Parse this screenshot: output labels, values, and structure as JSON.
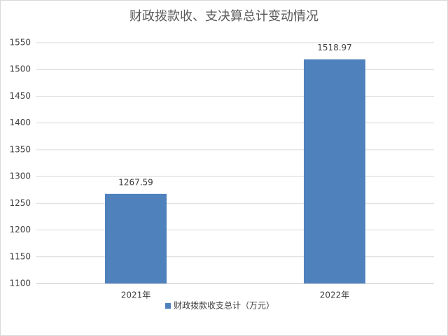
{
  "chart_data": {
    "type": "bar",
    "title": "财政拨款收、支决算总计变动情况",
    "categories": [
      "2021年",
      "2022年"
    ],
    "series": [
      {
        "name": "财政拨款收支总计（万元）",
        "color": "#4f81bd",
        "values": [
          1267.59,
          1518.97
        ]
      }
    ],
    "ylim": [
      1100,
      1550
    ],
    "yticks": [
      1100,
      1150,
      1200,
      1250,
      1300,
      1350,
      1400,
      1450,
      1500,
      1550
    ],
    "grid": true,
    "legend": "bottom",
    "data_labels": true
  }
}
